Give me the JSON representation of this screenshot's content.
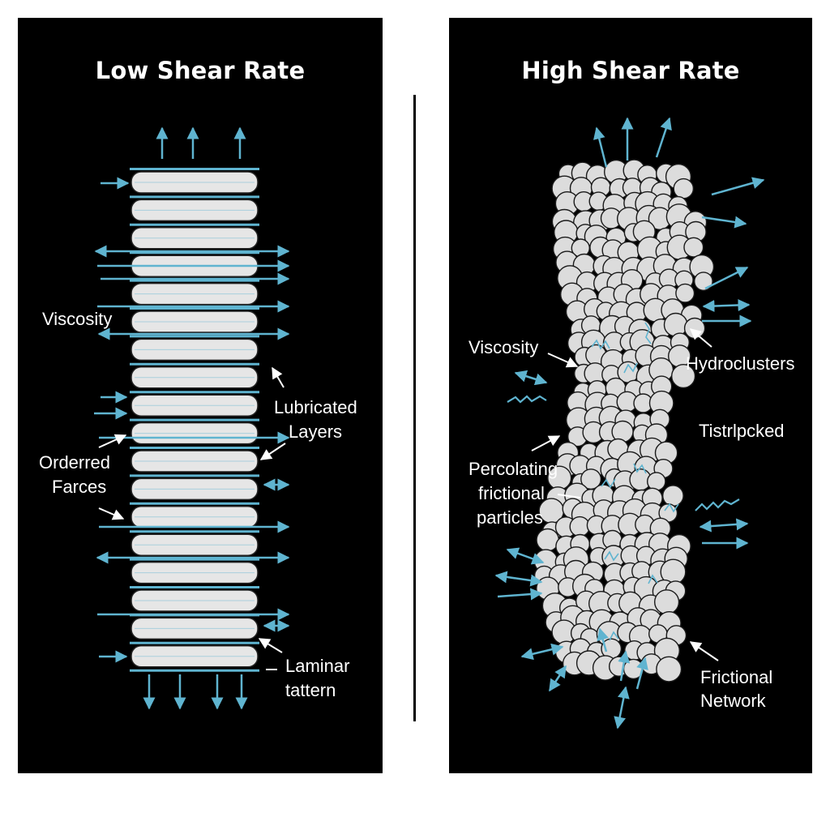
{
  "colors": {
    "panel": "#000000",
    "arrow": "#5fb4d0",
    "layer": "#e6e6e6",
    "particle": "#dcdcdc",
    "label": "#ffffff"
  },
  "left": {
    "title": "Low Shear Rate",
    "labels": {
      "viscosity": "Viscosity",
      "lubricated": [
        "Lubricated",
        "Layers"
      ],
      "ordered": [
        "Orderred",
        "Farces"
      ],
      "laminar": [
        "Laminar",
        "tattern"
      ]
    }
  },
  "right": {
    "title": "High Shear Rate",
    "labels": {
      "viscosity": "Viscosity",
      "hydroclusters": "Hydroclusters",
      "tistr": "Tistrlpcked",
      "percolating": [
        "Percolating",
        "frictional",
        "particles"
      ],
      "frictional_network": [
        "Frictional",
        "Network"
      ]
    }
  }
}
